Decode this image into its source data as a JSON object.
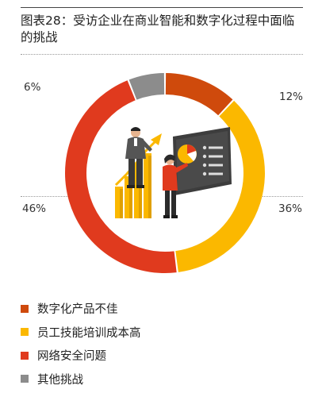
{
  "title": "图表28：受访企业在商业智能和数字化过程中面临的挑战",
  "chart_data": {
    "type": "pie",
    "variant": "donut",
    "categories": [
      "数字化产品不佳",
      "员工技能培训成本高",
      "网络安全问题",
      "其他挑战"
    ],
    "values": [
      12,
      36,
      46,
      6
    ],
    "labels": [
      "12%",
      "36%",
      "46%",
      "6%"
    ],
    "colors": [
      "#cf4a0c",
      "#fbb800",
      "#e03a1e",
      "#8c8c8c"
    ],
    "legend_position": "bottom-left"
  },
  "illustration": {
    "description_icons": [
      "businessman-icon",
      "businesswoman-icon",
      "bar-chart-icon",
      "presentation-board-icon"
    ]
  }
}
